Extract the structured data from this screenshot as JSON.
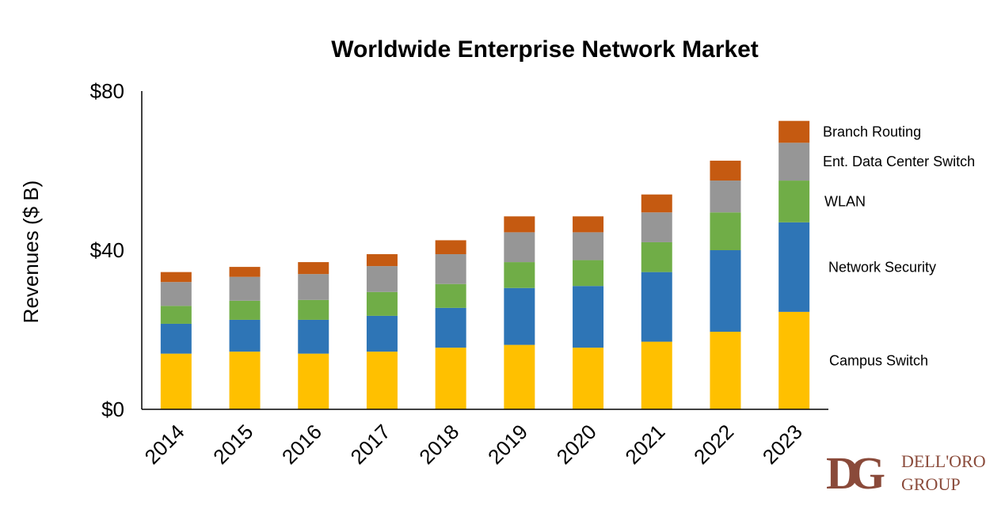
{
  "chart_data": {
    "type": "bar",
    "stacked": true,
    "title": "Worldwide Enterprise Network Market",
    "xlabel": "",
    "ylabel": "Revenues ($ B)",
    "ylim": [
      0,
      80
    ],
    "yticks": [
      "$0",
      "$40",
      "$80"
    ],
    "categories": [
      "2014",
      "2015",
      "2016",
      "2017",
      "2018",
      "2019",
      "2020",
      "2021",
      "2022",
      "2023"
    ],
    "legend_position": "right",
    "grid": false,
    "series": [
      {
        "name": "Campus Switch",
        "color": "#FFC000",
        "values": [
          14.0,
          14.5,
          14.0,
          14.5,
          15.5,
          16.2,
          15.5,
          17.0,
          19.5,
          24.5
        ]
      },
      {
        "name": "Network Security",
        "color": "#2E75B6",
        "values": [
          7.5,
          8.0,
          8.5,
          9.0,
          10.0,
          14.3,
          15.5,
          17.5,
          20.5,
          22.5
        ]
      },
      {
        "name": "WLAN",
        "color": "#70AD47",
        "values": [
          4.5,
          4.8,
          5.0,
          6.0,
          6.0,
          6.5,
          6.5,
          7.5,
          9.5,
          10.5
        ]
      },
      {
        "name": "Ent. Data Center Switch",
        "color": "#969696",
        "values": [
          6.0,
          6.0,
          6.5,
          6.5,
          7.5,
          7.5,
          7.0,
          7.5,
          8.0,
          9.5
        ]
      },
      {
        "name": "Branch Routing",
        "color": "#C55A11",
        "values": [
          2.5,
          2.5,
          3.0,
          3.0,
          3.5,
          4.0,
          4.0,
          4.5,
          5.0,
          5.5
        ]
      }
    ]
  },
  "logo": {
    "line1": "DELL'ORO",
    "line2": "GROUP",
    "mark": "DG",
    "color": "#8a4a3a"
  }
}
